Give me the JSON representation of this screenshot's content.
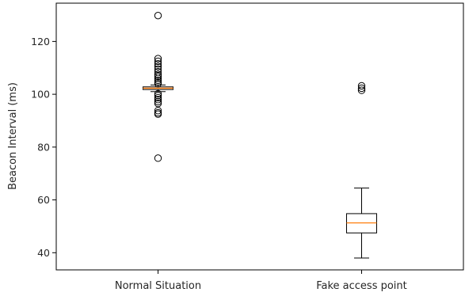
{
  "chart_data": {
    "type": "box",
    "title": "",
    "xlabel": "",
    "ylabel": "Beacon Interval (ms)",
    "ylim": [
      33.5,
      134.5
    ],
    "yticks": [
      40,
      60,
      80,
      100,
      120
    ],
    "grid": false,
    "categories": [
      "Normal Situation",
      "Fake access point"
    ],
    "boxes": [
      {
        "whisker_low": 101.0,
        "q1": 101.8,
        "median": 102.3,
        "q3": 102.8,
        "whisker_high": 103.5,
        "outliers": [
          129.8,
          113.5,
          112.5,
          111.5,
          110.5,
          109.5,
          108.5,
          107.5,
          106.8,
          106.0,
          105.3,
          104.6,
          104.0,
          100.2,
          99.5,
          98.7,
          98.0,
          97.2,
          96.5,
          93.8,
          93.0,
          92.5,
          75.8
        ]
      },
      {
        "whisker_low": 38.0,
        "q1": 47.5,
        "median": 51.3,
        "q3": 54.8,
        "whisker_high": 64.5,
        "outliers": [
          101.5,
          102.3,
          103.2
        ]
      }
    ],
    "colors": {
      "box": "#000000",
      "median": "#ff7f0e",
      "axis": "#000000"
    }
  }
}
